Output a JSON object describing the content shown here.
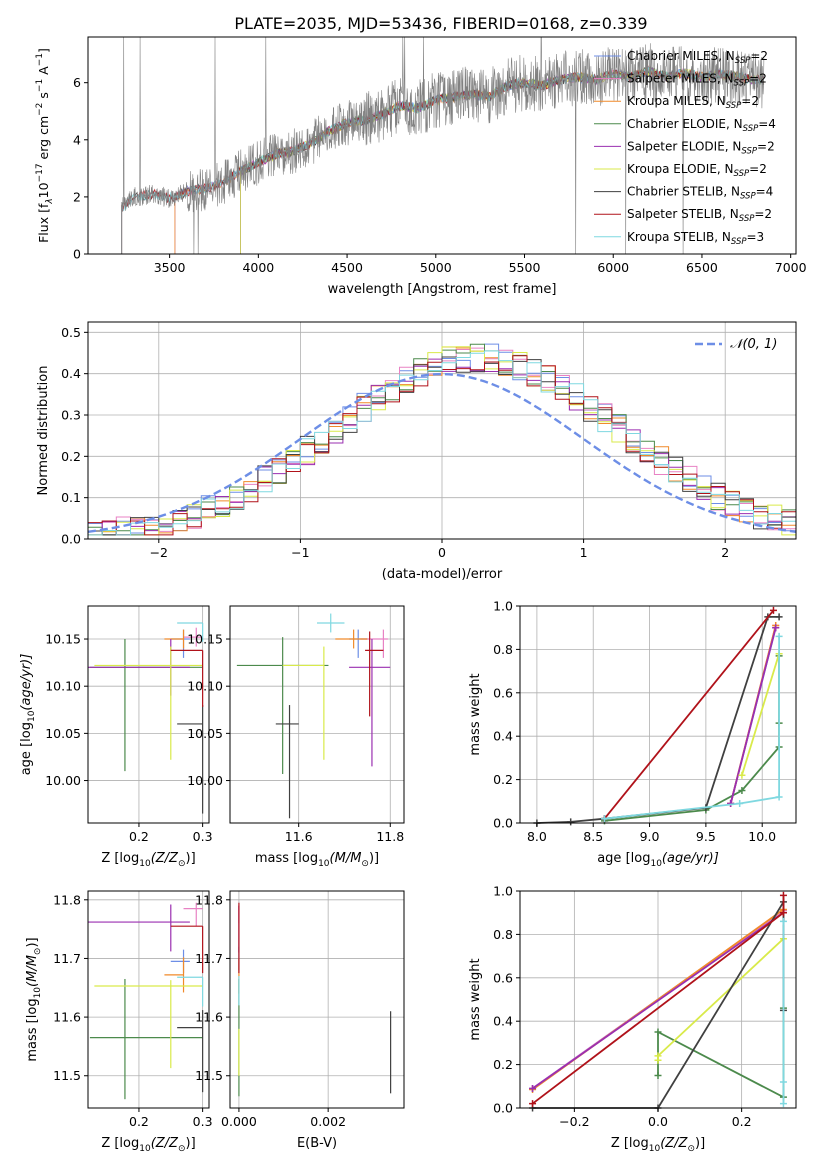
{
  "figure": {
    "title": "PLATE=2035, MJD=53436, FIBERID=0168, z=0.339"
  },
  "colors": {
    "Chabrier MILES": "#6d8ee6",
    "Salpeter MILES": "#e882c4",
    "Kroupa MILES": "#f08a2a",
    "Chabrier ELODIE": "#4c8a4c",
    "Salpeter ELODIE": "#9a2fb0",
    "Kroupa ELODIE": "#d9ea4a",
    "Chabrier STELIB": "#404040",
    "Salpeter STELIB": "#b0121a",
    "Kroupa STELIB": "#7fd8e0",
    "data": "#808080",
    "normal": "#6d8ee6"
  },
  "legend_spectrum": [
    {
      "label": "Chabrier MILES, N",
      "sub": "SSP",
      "count": "=2",
      "model": "Chabrier MILES"
    },
    {
      "label": "Salpeter MILES, N",
      "sub": "SSP",
      "count": "=2",
      "model": "Salpeter MILES"
    },
    {
      "label": "Kroupa MILES, N",
      "sub": "SSP",
      "count": "=2",
      "model": "Kroupa MILES"
    },
    {
      "label": "Chabrier ELODIE, N",
      "sub": "SSP",
      "count": "=4",
      "model": "Chabrier ELODIE"
    },
    {
      "label": "Salpeter ELODIE, N",
      "sub": "SSP",
      "count": "=2",
      "model": "Salpeter ELODIE"
    },
    {
      "label": "Kroupa ELODIE, N",
      "sub": "SSP",
      "count": "=2",
      "model": "Kroupa ELODIE"
    },
    {
      "label": "Chabrier STELIB, N",
      "sub": "SSP",
      "count": "=4",
      "model": "Chabrier STELIB"
    },
    {
      "label": "Salpeter STELIB, N",
      "sub": "SSP",
      "count": "=2",
      "model": "Salpeter STELIB"
    },
    {
      "label": "Kroupa STELIB, N",
      "sub": "SSP",
      "count": "=3",
      "model": "Kroupa STELIB"
    }
  ],
  "legend_hist": {
    "label": "𝒩(0, 1)"
  },
  "chart_data": [
    {
      "id": "spectrum",
      "type": "line",
      "xlabel": "wavelength [Angstrom, rest frame]",
      "ylabel": "Flux [f",
      "ylabel_rest": "10",
      "ylabel_exp": "−17",
      "ylabel_units": " erg cm",
      "ylabel_exp2": "−2",
      "ylabel_units2": " s",
      "ylabel_exp3": "−1",
      "ylabel_units3": " A",
      "ylabel_exp4": "−1",
      "ylabel_end": "]",
      "xlim": [
        3040,
        7030
      ],
      "ylim": [
        0,
        7.6
      ],
      "xticks": [
        3500,
        4000,
        4500,
        5000,
        5500,
        6000,
        6500,
        7000
      ],
      "yticks": [
        0,
        2,
        4,
        6
      ],
      "continuum": {
        "x": [
          3230,
          3300,
          3400,
          3500,
          3600,
          3700,
          3800,
          3900,
          4000,
          4100,
          4200,
          4300,
          4400,
          4500,
          4600,
          4700,
          4800,
          4900,
          5000,
          5100,
          5200,
          5300,
          5400,
          5500,
          5600,
          5700,
          5800,
          5900,
          6000,
          6100,
          6200,
          6300,
          6400,
          6500,
          6600,
          6700,
          6800,
          6850
        ],
        "y": [
          1.6,
          2.0,
          2.1,
          1.95,
          2.2,
          2.3,
          2.5,
          2.9,
          3.2,
          3.5,
          3.6,
          3.9,
          4.3,
          4.6,
          4.7,
          4.9,
          5.2,
          5.1,
          5.4,
          5.5,
          5.6,
          5.5,
          5.9,
          6.0,
          5.9,
          6.1,
          6.2,
          6.1,
          6.3,
          6.2,
          6.4,
          6.2,
          6.35,
          6.2,
          6.3,
          6.2,
          6.1,
          6.1
        ]
      }
    },
    {
      "id": "histogram",
      "type": "histogram",
      "xlabel": "(data-model)/error",
      "ylabel": "Normed distribution",
      "xlim": [
        -2.5,
        2.5
      ],
      "ylim": [
        0,
        0.525
      ],
      "xticks": [
        -2,
        -1,
        0,
        1,
        2
      ],
      "yticks": [
        0.0,
        0.1,
        0.2,
        0.3,
        0.4,
        0.5
      ],
      "bin_width": 0.1,
      "x_start": -2.5
    },
    {
      "id": "age_vs_Z",
      "type": "errorbar",
      "xlabel": "Z [log",
      "xlabel_sub": "10",
      "xlabel_rest": "(Z/Z",
      "xlabel_sun": "⊙",
      "xlabel_end": ")]",
      "ylabel": "age  [log",
      "ylabel_sub": "10",
      "ylabel_rest": "(age/yr)]",
      "xlim": [
        0.12,
        0.31
      ],
      "ylim": [
        9.955,
        10.185
      ],
      "xticks": [
        0.2,
        0.3
      ],
      "yticks": [
        10.0,
        10.05,
        10.1,
        10.15
      ],
      "points": [
        {
          "model": "Chabrier MILES",
          "x": 0.27,
          "y": 10.15,
          "xerr": [
            0.02,
            0.01
          ],
          "yerr": [
            0.02,
            0.01
          ]
        },
        {
          "model": "Salpeter MILES",
          "x": 0.29,
          "y": 10.152,
          "xerr": [
            0.02,
            0.01
          ],
          "yerr": [
            0.01,
            0.01
          ]
        },
        {
          "model": "Kroupa MILES",
          "x": 0.27,
          "y": 10.15,
          "xerr": [
            0.03,
            0.0
          ],
          "yerr": [
            0.01,
            0.01
          ]
        },
        {
          "model": "Chabrier ELODIE",
          "x": 0.178,
          "y": 10.12,
          "xerr": [
            0.055,
            0.122
          ],
          "yerr": [
            0.11,
            0.03
          ]
        },
        {
          "model": "Salpeter ELODIE",
          "x": 0.25,
          "y": 10.12,
          "xerr": [
            0.13,
            0.03
          ],
          "yerr": [
            0.03,
            0.03
          ]
        },
        {
          "model": "Kroupa ELODIE",
          "x": 0.25,
          "y": 10.122,
          "xerr": [
            0.12,
            0.05
          ],
          "yerr": [
            0.1,
            0.02
          ]
        },
        {
          "model": "Chabrier STELIB",
          "x": 0.3,
          "y": 10.06,
          "xerr": [
            0.04,
            0.0
          ],
          "yerr": [
            0.095,
            0.02
          ]
        },
        {
          "model": "Salpeter STELIB",
          "x": 0.3,
          "y": 10.138,
          "xerr": [
            0.05,
            0.0
          ],
          "yerr": [
            0.06,
            0.0
          ]
        },
        {
          "model": "Kroupa STELIB",
          "x": 0.3,
          "y": 10.167,
          "xerr": [
            0.04,
            0.0
          ],
          "yerr": [
            0.02,
            0.0
          ]
        }
      ]
    },
    {
      "id": "age_vs_mass",
      "type": "errorbar",
      "xlabel": "mass [log",
      "xlabel_sub": "10",
      "xlabel_rest": "(M/M",
      "xlabel_sun": "⊙",
      "xlabel_end": ")]",
      "xlim": [
        11.45,
        11.83
      ],
      "ylim": [
        9.955,
        10.185
      ],
      "xticks": [
        11.6,
        11.8
      ],
      "yticks": [
        10.0,
        10.05,
        10.1,
        10.15
      ],
      "points": [
        {
          "model": "Chabrier MILES",
          "x": 11.73,
          "y": 10.15,
          "xerr": [
            0.02,
            0.02
          ],
          "yerr": [
            0.02,
            0.01
          ]
        },
        {
          "model": "Salpeter MILES",
          "x": 11.785,
          "y": 10.15,
          "xerr": [
            0.05,
            0.01
          ],
          "yerr": [
            0.02,
            0.01
          ]
        },
        {
          "model": "Kroupa MILES",
          "x": 11.72,
          "y": 10.15,
          "xerr": [
            0.04,
            0.03
          ],
          "yerr": [
            0.01,
            0.01
          ]
        },
        {
          "model": "Chabrier ELODIE",
          "x": 11.565,
          "y": 10.122,
          "xerr": [
            0.1,
            0.1
          ],
          "yerr": [
            0.115,
            0.03
          ]
        },
        {
          "model": "Salpeter ELODIE",
          "x": 11.76,
          "y": 10.12,
          "xerr": [
            0.05,
            0.04
          ],
          "yerr": [
            0.105,
            0.03
          ]
        },
        {
          "model": "Kroupa ELODIE",
          "x": 11.655,
          "y": 10.122,
          "xerr": [
            0.09,
            0.0
          ],
          "yerr": [
            0.1,
            0.02
          ]
        },
        {
          "model": "Chabrier STELIB",
          "x": 11.58,
          "y": 10.06,
          "xerr": [
            0.03,
            0.02
          ],
          "yerr": [
            0.1,
            0.02
          ]
        },
        {
          "model": "Salpeter STELIB",
          "x": 11.755,
          "y": 10.138,
          "xerr": [
            0.01,
            0.03
          ],
          "yerr": [
            0.07,
            0.02
          ]
        },
        {
          "model": "Kroupa STELIB",
          "x": 11.67,
          "y": 10.167,
          "xerr": [
            0.03,
            0.03
          ],
          "yerr": [
            0.01,
            0.01
          ]
        }
      ]
    },
    {
      "id": "cumulative_age",
      "type": "line",
      "xlabel": "age  [log",
      "xlabel_sub": "10",
      "xlabel_rest": "(age/yr)]",
      "ylabel": "mass weight",
      "xlim": [
        7.85,
        10.3
      ],
      "ylim": [
        0,
        1.0
      ],
      "xticks": [
        8.0,
        8.5,
        9.0,
        9.5,
        10.0
      ],
      "yticks": [
        0.0,
        0.2,
        0.4,
        0.6,
        0.8,
        1.0
      ],
      "series": [
        {
          "model": "Chabrier MILES",
          "x": [
            9.72,
            10.12
          ],
          "y": [
            0.09,
            0.9
          ]
        },
        {
          "model": "Salpeter MILES",
          "x": [
            9.72,
            10.12
          ],
          "y": [
            0.09,
            0.91
          ]
        },
        {
          "model": "Kroupa MILES",
          "x": [
            9.72,
            10.12
          ],
          "y": [
            0.09,
            0.91
          ]
        },
        {
          "model": "Chabrier ELODIE",
          "x": [
            8.6,
            9.5,
            9.82,
            10.15,
            10.15,
            10.15
          ],
          "y": [
            0.01,
            0.06,
            0.15,
            0.35,
            0.46,
            0.77
          ]
        },
        {
          "model": "Salpeter ELODIE",
          "x": [
            9.72,
            10.12
          ],
          "y": [
            0.09,
            0.9
          ]
        },
        {
          "model": "Kroupa ELODIE",
          "x": [
            9.82,
            10.15
          ],
          "y": [
            0.22,
            0.78
          ]
        },
        {
          "model": "Chabrier STELIB",
          "x": [
            8.0,
            8.3,
            8.6,
            9.5,
            10.05,
            10.15
          ],
          "y": [
            0.0,
            0.005,
            0.02,
            0.07,
            0.95,
            0.95
          ]
        },
        {
          "model": "Salpeter STELIB",
          "x": [
            8.6,
            10.1
          ],
          "y": [
            0.02,
            0.98
          ]
        },
        {
          "model": "Kroupa STELIB",
          "x": [
            8.6,
            9.8,
            10.15,
            10.15
          ],
          "y": [
            0.02,
            0.09,
            0.12,
            0.86
          ]
        }
      ]
    },
    {
      "id": "mass_vs_Z",
      "type": "errorbar",
      "xlabel": "Z [log",
      "xlabel_sub": "10",
      "xlabel_rest": "(Z/Z",
      "xlabel_sun": "⊙",
      "xlabel_end": ")]",
      "ylabel": "mass [log",
      "ylabel_sub": "10",
      "ylabel_rest": "(M/M",
      "ylabel_sun": "⊙",
      "ylabel_end": ")]",
      "xlim": [
        0.12,
        0.31
      ],
      "ylim": [
        11.445,
        11.815
      ],
      "xticks": [
        0.2,
        0.3
      ],
      "yticks": [
        11.5,
        11.6,
        11.7,
        11.8
      ],
      "points": [
        {
          "model": "Chabrier MILES",
          "x": 0.27,
          "y": 11.695,
          "xerr": [
            0.02,
            0.01
          ],
          "yerr": [
            0.02,
            0.02
          ]
        },
        {
          "model": "Salpeter MILES",
          "x": 0.29,
          "y": 11.785,
          "xerr": [
            0.02,
            0.01
          ],
          "yerr": [
            0.03,
            0.01
          ]
        },
        {
          "model": "Kroupa MILES",
          "x": 0.27,
          "y": 11.672,
          "xerr": [
            0.03,
            0.0
          ],
          "yerr": [
            0.03,
            0.03
          ]
        },
        {
          "model": "Chabrier ELODIE",
          "x": 0.178,
          "y": 11.565,
          "xerr": [
            0.055,
            0.122
          ],
          "yerr": [
            0.105,
            0.1
          ]
        },
        {
          "model": "Salpeter ELODIE",
          "x": 0.25,
          "y": 11.762,
          "xerr": [
            0.13,
            0.03
          ],
          "yerr": [
            0.05,
            0.03
          ]
        },
        {
          "model": "Kroupa ELODIE",
          "x": 0.25,
          "y": 11.653,
          "xerr": [
            0.12,
            0.05
          ],
          "yerr": [
            0.14,
            0.01
          ]
        },
        {
          "model": "Chabrier STELIB",
          "x": 0.3,
          "y": 11.582,
          "xerr": [
            0.04,
            0.0
          ],
          "yerr": [
            0.11,
            0.03
          ]
        },
        {
          "model": "Salpeter STELIB",
          "x": 0.3,
          "y": 11.755,
          "xerr": [
            0.05,
            0.0
          ],
          "yerr": [
            0.08,
            0.0
          ]
        },
        {
          "model": "Kroupa STELIB",
          "x": 0.3,
          "y": 11.668,
          "xerr": [
            0.04,
            0.0
          ],
          "yerr": [
            0.05,
            0.0
          ]
        }
      ]
    },
    {
      "id": "mass_vs_EBV",
      "type": "errorbar",
      "xlabel": "E(B-V)",
      "xlim": [
        -0.0002,
        0.0037
      ],
      "ylim": [
        11.445,
        11.815
      ],
      "xticks": [
        0.0,
        0.002
      ],
      "yticks": [
        11.5,
        11.6,
        11.7,
        11.8
      ],
      "points": [
        {
          "model": "Chabrier MILES",
          "x": 0.0,
          "y": 11.7,
          "xerr": [
            0,
            0
          ],
          "yerr": [
            0.02,
            0.02
          ]
        },
        {
          "model": "Salpeter MILES",
          "x": 0.0,
          "y": 11.78,
          "xerr": [
            0,
            0
          ],
          "yerr": [
            0.02,
            0.01
          ]
        },
        {
          "model": "Kroupa MILES",
          "x": 0.0,
          "y": 11.67,
          "xerr": [
            0,
            0
          ],
          "yerr": [
            0.03,
            0.03
          ]
        },
        {
          "model": "Chabrier ELODIE",
          "x": 0.0,
          "y": 11.565,
          "xerr": [
            0,
            0
          ],
          "yerr": [
            0.1,
            0.1
          ]
        },
        {
          "model": "Salpeter ELODIE",
          "x": 0.0,
          "y": 11.76,
          "xerr": [
            0,
            0
          ],
          "yerr": [
            0.05,
            0.03
          ]
        },
        {
          "model": "Kroupa ELODIE",
          "x": 0.0,
          "y": 11.55,
          "xerr": [
            0,
            0
          ],
          "yerr": [
            0.05,
            0.03
          ]
        },
        {
          "model": "Chabrier STELIB",
          "x": 0.0034,
          "y": 11.54,
          "xerr": [
            0,
            0
          ],
          "yerr": [
            0.07,
            0.07
          ]
        },
        {
          "model": "Salpeter STELIB",
          "x": 0.0,
          "y": 11.755,
          "xerr": [
            0,
            0
          ],
          "yerr": [
            0.08,
            0.04
          ]
        },
        {
          "model": "Kroupa STELIB",
          "x": 0.0,
          "y": 11.67,
          "xerr": [
            0,
            0
          ],
          "yerr": [
            0.05,
            0.0
          ]
        }
      ]
    },
    {
      "id": "cumulative_Z",
      "type": "line",
      "xlabel": "Z [log",
      "xlabel_sub": "10",
      "xlabel_rest": "(Z/Z",
      "xlabel_sun": "⊙",
      "xlabel_end": ")]",
      "ylabel": "mass weight",
      "xlim": [
        -0.33,
        0.33
      ],
      "ylim": [
        0,
        1.0
      ],
      "xticks": [
        -0.2,
        0.0,
        0.2
      ],
      "yticks": [
        0.0,
        0.2,
        0.4,
        0.6,
        0.8,
        1.0
      ],
      "series": [
        {
          "model": "Chabrier MILES",
          "x": [
            -0.3,
            0.3
          ],
          "y": [
            0.09,
            0.91
          ]
        },
        {
          "model": "Salpeter MILES",
          "x": [
            -0.3,
            0.3
          ],
          "y": [
            0.09,
            0.91
          ]
        },
        {
          "model": "Kroupa MILES",
          "x": [
            -0.3,
            0.3
          ],
          "y": [
            0.085,
            0.915
          ]
        },
        {
          "model": "Chabrier ELODIE",
          "x": [
            0.0,
            0.0,
            0.3,
            0.3
          ],
          "y": [
            0.15,
            0.35,
            0.05,
            0.46
          ]
        },
        {
          "model": "Salpeter ELODIE",
          "x": [
            -0.3,
            0.3
          ],
          "y": [
            0.09,
            0.9
          ]
        },
        {
          "model": "Kroupa ELODIE",
          "x": [
            0.0,
            0.0,
            0.3
          ],
          "y": [
            0.22,
            0.24,
            0.78
          ]
        },
        {
          "model": "Chabrier STELIB",
          "x": [
            -0.3,
            0.0,
            0.3,
            0.3
          ],
          "y": [
            0.0,
            0.0,
            0.95,
            0.45
          ]
        },
        {
          "model": "Salpeter STELIB",
          "x": [
            -0.3,
            0.3,
            0.3
          ],
          "y": [
            0.02,
            0.9,
            0.98
          ]
        },
        {
          "model": "Kroupa STELIB",
          "x": [
            0.3,
            0.3,
            0.3
          ],
          "y": [
            0.02,
            0.12,
            0.86
          ]
        }
      ]
    }
  ]
}
